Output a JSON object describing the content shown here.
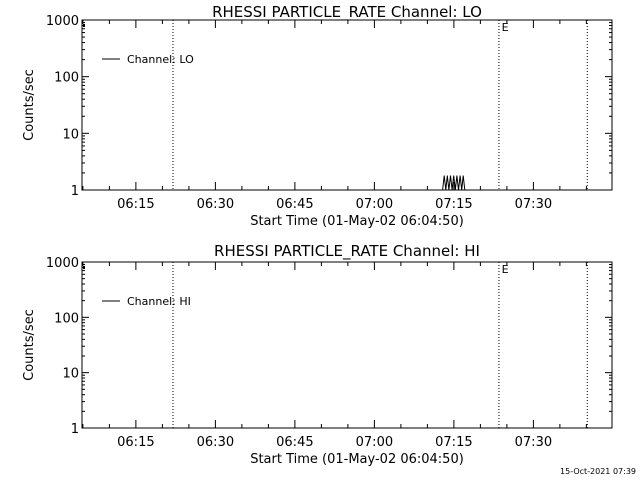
{
  "chart_data": [
    {
      "type": "line",
      "title": "RHESSI PARTICLE_RATE Channel: LO",
      "xlabel": "Start Time (01-May-02 06:04:50)",
      "ylabel": "Counts/sec",
      "yscale": "log",
      "ylim": [
        1,
        1000
      ],
      "y_ticks": [
        "1",
        "10",
        "100",
        "1000"
      ],
      "xlim": [
        "06:04:50",
        "07:44:50"
      ],
      "x_ticks": [
        "06:15",
        "06:30",
        "06:45",
        "07:00",
        "07:15",
        "07:30"
      ],
      "grid": false,
      "legend_position": "top-left",
      "markers_vertical_dotted": [
        "06:22:00",
        "07:23:30",
        "07:40:10"
      ],
      "annotation": {
        "text": "E",
        "x": "07:24:00"
      },
      "series": [
        {
          "name": "Channel: LO",
          "x": [
            "07:12:52",
            "07:13:10",
            "07:13:28",
            "07:13:46",
            "07:14:04",
            "07:14:22",
            "07:14:40",
            "07:14:58",
            "07:15:16",
            "07:15:34",
            "07:15:52",
            "07:16:10",
            "07:16:28",
            "07:16:46",
            "07:17:04"
          ],
          "y": [
            1,
            1.8,
            1,
            1.8,
            1,
            1.8,
            1,
            1.8,
            1,
            1.8,
            1,
            1.8,
            1,
            1.8,
            1
          ]
        }
      ]
    },
    {
      "type": "line",
      "title": "RHESSI PARTICLE_RATE Channel: HI",
      "xlabel": "Start Time (01-May-02 06:04:50)",
      "ylabel": "Counts/sec",
      "yscale": "log",
      "ylim": [
        1,
        1000
      ],
      "y_ticks": [
        "1",
        "10",
        "100",
        "1000"
      ],
      "xlim": [
        "06:04:50",
        "07:44:50"
      ],
      "x_ticks": [
        "06:15",
        "06:30",
        "06:45",
        "07:00",
        "07:15",
        "07:30"
      ],
      "grid": false,
      "legend_position": "top-left",
      "markers_vertical_dotted": [
        "06:22:00",
        "07:23:30",
        "07:40:10"
      ],
      "annotation": {
        "text": "E",
        "x": "07:24:00"
      },
      "series": [
        {
          "name": "Channel: HI",
          "x": [],
          "y": []
        }
      ]
    }
  ],
  "footer": {
    "timestamp": "15-Oct-2021 07:39"
  },
  "colors": {
    "background": "#ffffff",
    "foreground": "#000000"
  }
}
